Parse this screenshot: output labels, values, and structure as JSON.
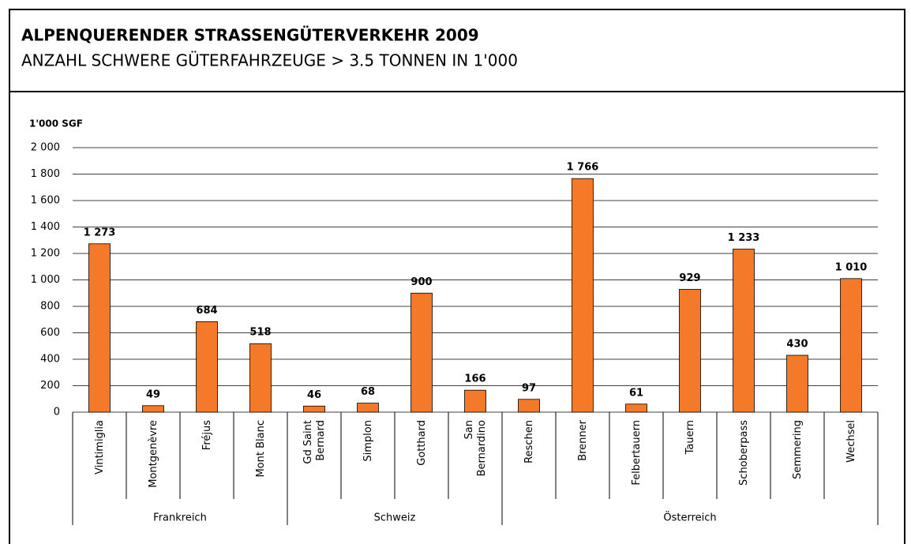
{
  "chart_data": {
    "type": "bar",
    "title": "ALPENQUERENDER STRASSENGÜTERVERKEHR 2009",
    "subtitle": "ANZAHL SCHWERE GÜTERFAHRZEUGE > 3.5 TONNEN IN 1'000",
    "y_label": "1'000 SGF",
    "categories": [
      "Vintimiglia",
      "Montgenèvre",
      "Fréjus",
      "Mont Blanc",
      "Gd Saint\nBernard",
      "Simplon",
      "Gotthard",
      "San\nBernardino",
      "Reschen",
      "Brenner",
      "Felbertauern",
      "Tauern",
      "Schoberpass",
      "Semmering",
      "Wechsel"
    ],
    "category_groups": [
      "Frankreich",
      "Frankreich",
      "Frankreich",
      "Frankreich",
      "Schweiz",
      "Schweiz",
      "Schweiz",
      "Schweiz",
      "Österreich",
      "Österreich",
      "Österreich",
      "Österreich",
      "Österreich",
      "Österreich",
      "Österreich"
    ],
    "values": [
      1273,
      49,
      684,
      518,
      46,
      68,
      900,
      166,
      97,
      1766,
      61,
      929,
      1233,
      430,
      1010
    ],
    "value_labels": [
      "1 273",
      "49",
      "684",
      "518",
      "46",
      "68",
      "900",
      "166",
      "97",
      "1 766",
      "61",
      "929",
      "1 233",
      "430",
      "1 010"
    ],
    "color": "#f47a2a",
    "ylim": [
      0,
      2000
    ],
    "yticks": [
      0,
      200,
      400,
      600,
      800,
      {
        "value": 1000,
        "label": "1 000"
      },
      {
        "value": 1200,
        "label": "1 200"
      },
      {
        "value": 1400,
        "label": "1 400"
      },
      {
        "value": 1600,
        "label": "1 600"
      },
      {
        "value": 1800,
        "label": "1 800"
      },
      {
        "value": 2000,
        "label": "2 000"
      }
    ],
    "grid": true
  }
}
